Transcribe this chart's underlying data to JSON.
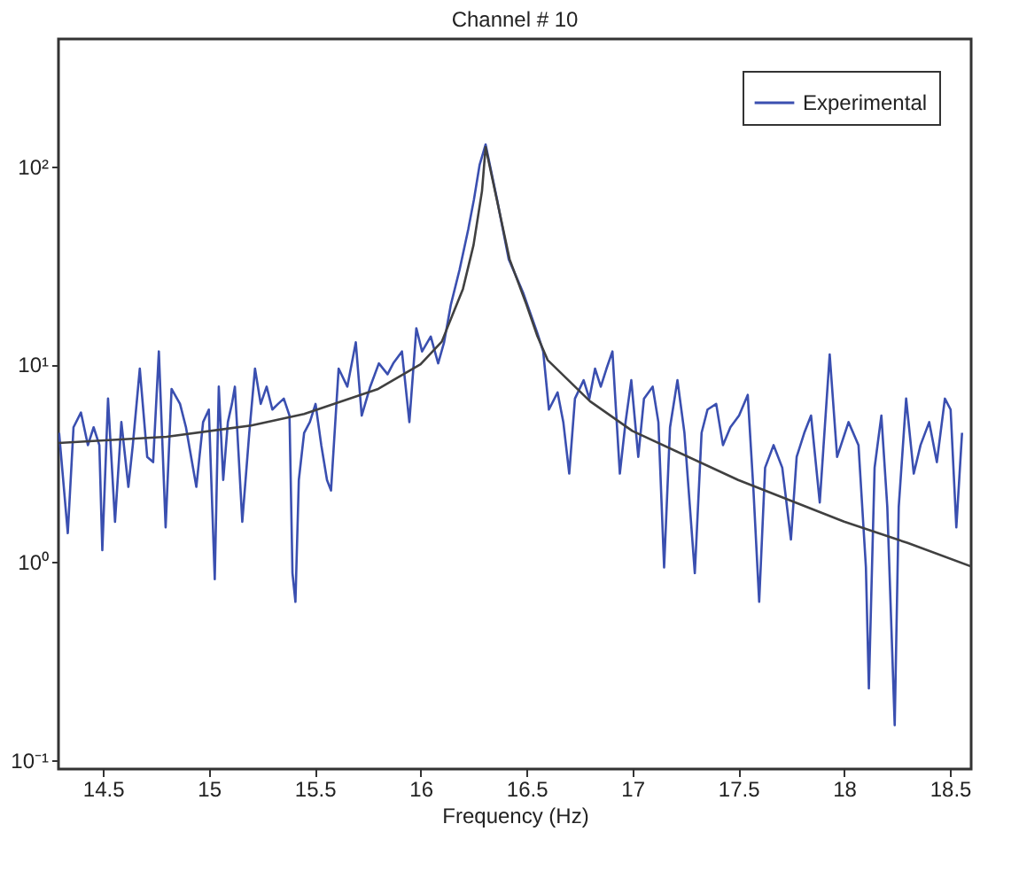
{
  "chart_data": {
    "type": "line",
    "title": "Channel # 10",
    "xlabel": "Frequency (Hz)",
    "log": "y",
    "grid": false,
    "legend": "top right",
    "xlim": [
      14.29,
      18.6
    ],
    "ylim": [
      0.09,
      440
    ],
    "xticks": [
      14.5,
      15,
      15.5,
      16,
      16.5,
      17,
      17.5,
      18,
      18.5
    ],
    "yticks": [
      {
        "value": 0.1,
        "label": "10⁻¹"
      },
      {
        "value": 1,
        "label": "10⁰"
      },
      {
        "value": 10,
        "label": "10¹"
      },
      {
        "value": 100,
        "label": "10²"
      }
    ],
    "series": [
      {
        "name": "Experimental",
        "color": "#3a4fb0",
        "x": [
          14.293,
          14.334,
          14.361,
          14.396,
          14.429,
          14.456,
          14.483,
          14.497,
          14.524,
          14.557,
          14.587,
          14.62,
          14.641,
          14.674,
          14.709,
          14.737,
          14.764,
          14.796,
          14.824,
          14.864,
          14.892,
          14.941,
          14.973,
          15.0,
          15.028,
          15.047,
          15.068,
          15.09,
          15.109,
          15.123,
          15.158,
          15.191,
          15.218,
          15.245,
          15.273,
          15.3,
          15.327,
          15.354,
          15.381,
          15.395,
          15.409,
          15.425,
          15.45,
          15.477,
          15.504,
          15.531,
          15.558,
          15.577,
          15.613,
          15.654,
          15.694,
          15.722,
          15.762,
          15.803,
          15.844,
          15.871,
          15.912,
          15.947,
          15.98,
          16.007,
          16.048,
          16.083,
          16.111,
          16.143,
          16.184,
          16.225,
          16.252,
          16.279,
          16.307,
          16.361,
          16.416,
          16.484,
          16.552,
          16.579,
          16.606,
          16.647,
          16.674,
          16.702,
          16.729,
          16.77,
          16.797,
          16.824,
          16.851,
          16.878,
          16.906,
          16.941,
          16.968,
          16.995,
          17.028,
          17.055,
          17.096,
          17.123,
          17.15,
          17.178,
          17.213,
          17.246,
          17.295,
          17.327,
          17.355,
          17.396,
          17.428,
          17.463,
          17.504,
          17.545,
          17.572,
          17.599,
          17.627,
          17.667,
          17.708,
          17.749,
          17.776,
          17.812,
          17.844,
          17.885,
          17.932,
          17.967,
          18.021,
          18.068,
          18.103,
          18.117,
          18.144,
          18.176,
          18.204,
          18.239,
          18.258,
          18.293,
          18.329,
          18.361,
          18.402,
          18.438,
          18.476,
          18.503,
          18.53,
          18.557
        ],
        "values": [
          4.5,
          1.4,
          4.8,
          5.7,
          3.9,
          4.8,
          3.9,
          1.15,
          6.7,
          1.6,
          5.1,
          2.4,
          3.9,
          9.5,
          3.4,
          3.2,
          11.6,
          1.5,
          7.5,
          6.3,
          4.8,
          2.4,
          5.1,
          5.9,
          0.82,
          7.7,
          2.6,
          5.1,
          6.3,
          7.7,
          1.6,
          4.5,
          9.5,
          6.3,
          7.7,
          5.9,
          6.3,
          6.7,
          5.5,
          0.88,
          0.63,
          2.6,
          4.5,
          5.1,
          6.3,
          3.9,
          2.6,
          2.3,
          9.5,
          7.7,
          12.9,
          5.5,
          7.7,
          10.1,
          8.9,
          10.1,
          11.6,
          5.1,
          15.2,
          11.6,
          13.8,
          10.1,
          12.9,
          20,
          30,
          48,
          68,
          102,
          129,
          68,
          34,
          23,
          14.3,
          11.6,
          5.9,
          7.2,
          5.1,
          2.8,
          6.7,
          8.3,
          6.7,
          9.5,
          7.7,
          9.5,
          11.6,
          2.8,
          5.1,
          8.3,
          3.4,
          6.7,
          7.7,
          5.1,
          0.94,
          4.8,
          8.3,
          4.5,
          0.88,
          4.5,
          5.9,
          6.3,
          3.9,
          4.8,
          5.5,
          7.0,
          2.3,
          0.63,
          3.0,
          3.9,
          3.0,
          1.3,
          3.4,
          4.5,
          5.5,
          2.0,
          11.2,
          3.4,
          5.1,
          3.9,
          0.94,
          0.23,
          3.0,
          5.5,
          1.9,
          0.15,
          1.9,
          6.7,
          2.8,
          3.9,
          5.1,
          3.2,
          6.7,
          5.9,
          1.5,
          4.5
        ]
      },
      {
        "color": "#404040",
        "x": [
          14.29,
          14.8,
          15.2,
          15.45,
          15.8,
          16.0,
          16.1,
          16.2,
          16.25,
          16.29,
          16.307,
          16.36,
          16.42,
          16.5,
          16.55,
          16.6,
          16.8,
          17.0,
          17.5,
          18.0,
          18.3,
          18.6
        ],
        "values": [
          4,
          4.3,
          4.9,
          5.6,
          7.5,
          10,
          13,
          24,
          40,
          75,
          125,
          68,
          34,
          20,
          14,
          10.5,
          6.5,
          4.6,
          2.6,
          1.6,
          1.25,
          0.95
        ]
      }
    ]
  }
}
